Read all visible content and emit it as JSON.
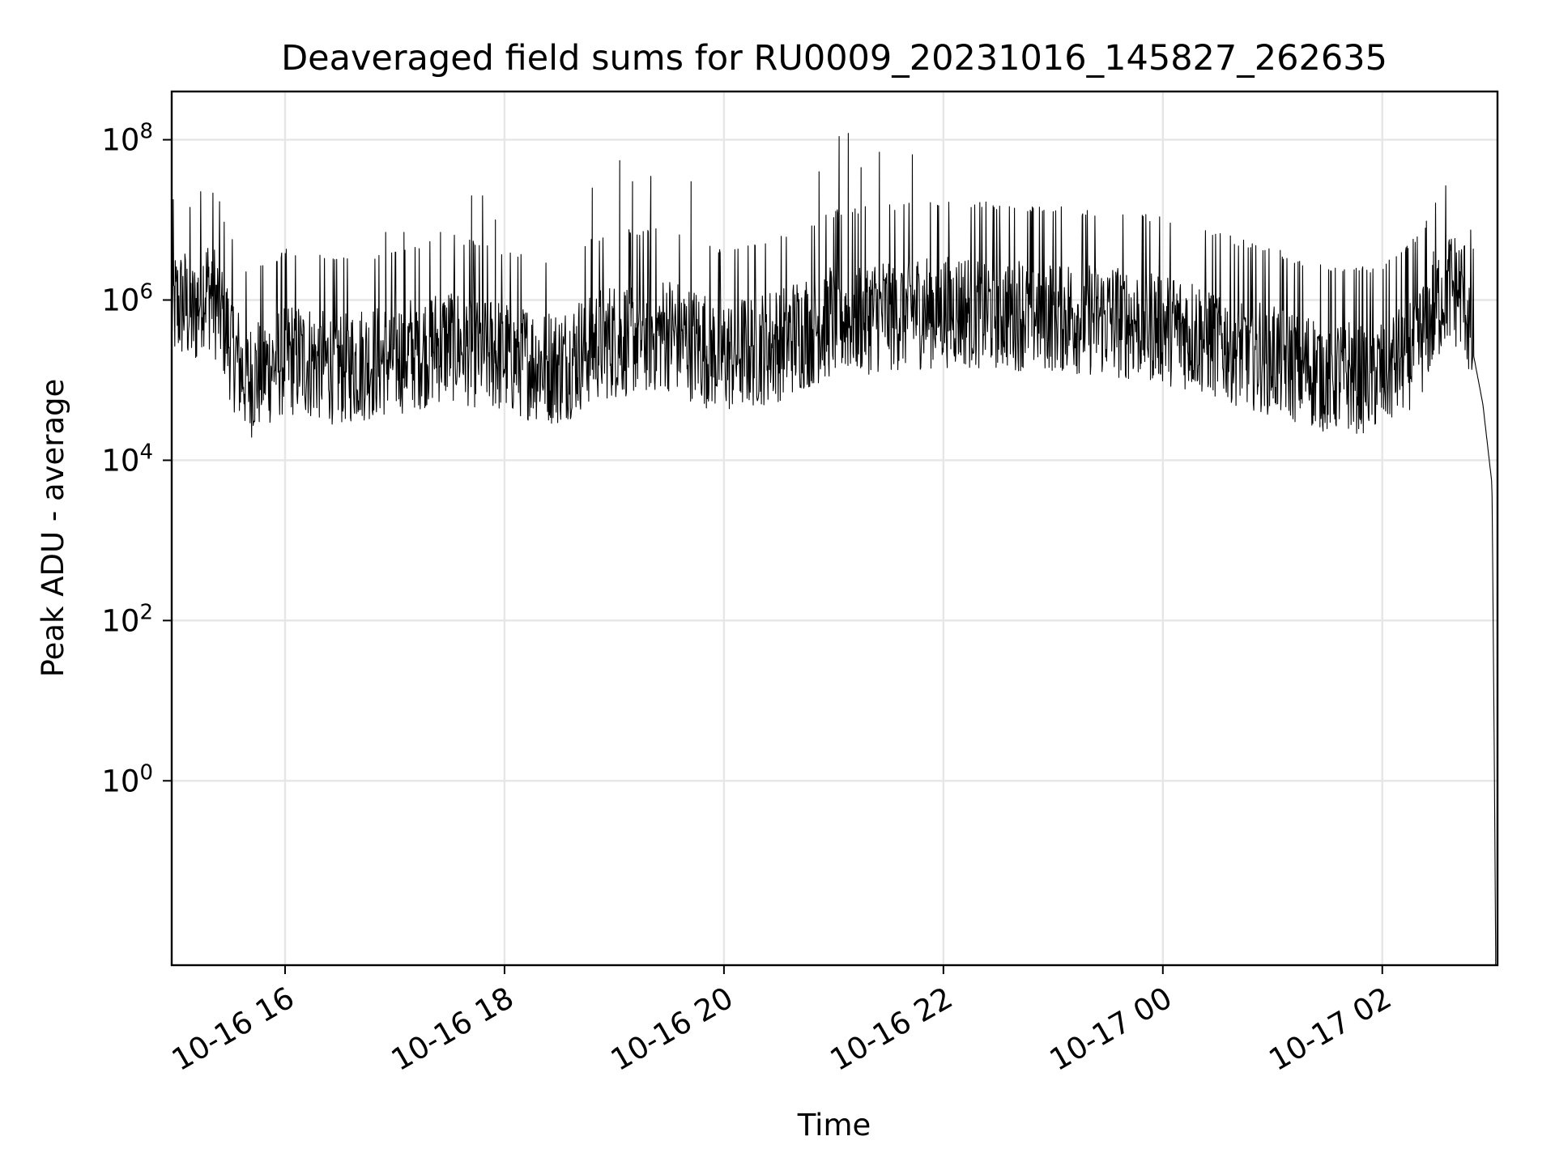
{
  "chart_data": {
    "type": "line",
    "title": "Deaveraged field sums for RU0009_20231016_145827_262635",
    "xlabel": "Time",
    "ylabel": "Peak ADU - average",
    "x_range": [
      "2023-10-16T14:58",
      "2023-10-17T03:03"
    ],
    "y_scale": "log",
    "ylim": [
      0.005,
      400000000
    ],
    "grid": true,
    "legend": "none",
    "line_color": "#000000",
    "x_ticks": [
      {
        "value": "2023-10-16T16:00",
        "label": "10-16 16"
      },
      {
        "value": "2023-10-16T18:00",
        "label": "10-16 18"
      },
      {
        "value": "2023-10-16T20:00",
        "label": "10-16 20"
      },
      {
        "value": "2023-10-16T22:00",
        "label": "10-16 22"
      },
      {
        "value": "2023-10-17T00:00",
        "label": "10-17 00"
      },
      {
        "value": "2023-10-17T02:00",
        "label": "10-17 02"
      }
    ],
    "y_ticks": [
      {
        "value": 1,
        "base": "10",
        "exp": "0"
      },
      {
        "value": 100,
        "base": "10",
        "exp": "2"
      },
      {
        "value": 10000,
        "base": "10",
        "exp": "4"
      },
      {
        "value": 1000000,
        "base": "10",
        "exp": "6"
      },
      {
        "value": 100000000,
        "base": "10",
        "exp": "8"
      }
    ],
    "series": [
      {
        "points": [
          [
            "2023-10-16T14:58",
            800000
          ],
          [
            "2023-10-16T15:05",
            900000
          ],
          [
            "2023-10-16T15:10",
            600000
          ],
          [
            "2023-10-16T15:15",
            1500000
          ],
          [
            "2023-10-16T15:20",
            1200000
          ],
          [
            "2023-10-16T15:25",
            700000
          ],
          [
            "2023-10-16T15:30",
            300000
          ],
          [
            "2023-10-16T15:35",
            150000
          ],
          [
            "2023-10-16T15:40",
            100000
          ],
          [
            "2023-10-16T16:00",
            200000
          ],
          [
            "2023-10-16T16:30",
            150000
          ],
          [
            "2023-10-16T17:00",
            200000
          ],
          [
            "2023-10-16T17:30",
            300000
          ],
          [
            "2023-10-16T18:00",
            200000
          ],
          [
            "2023-10-16T18:30",
            150000
          ],
          [
            "2023-10-16T18:50",
            300000
          ],
          [
            "2023-10-16T19:30",
            400000
          ],
          [
            "2023-10-16T20:00",
            200000
          ],
          [
            "2023-10-16T20:30",
            300000
          ],
          [
            "2023-10-16T21:00",
            600000
          ],
          [
            "2023-10-16T21:30",
            700000
          ],
          [
            "2023-10-16T22:00",
            800000
          ],
          [
            "2023-10-16T23:00",
            700000
          ],
          [
            "2023-10-17T00:00",
            500000
          ],
          [
            "2023-10-17T01:00",
            200000
          ],
          [
            "2023-10-17T01:30",
            120000
          ],
          [
            "2023-10-17T02:00",
            120000
          ],
          [
            "2023-10-17T02:20",
            300000
          ],
          [
            "2023-10-17T02:35",
            1500000
          ],
          [
            "2023-10-17T02:45",
            1200000
          ],
          [
            "2023-10-17T02:50",
            200000
          ],
          [
            "2023-10-17T02:55",
            50000
          ],
          [
            "2023-10-17T03:00",
            5000
          ],
          [
            "2023-10-17T03:01",
            10
          ],
          [
            "2023-10-17T03:02",
            0.008
          ]
        ],
        "spikes": [
          [
            "2023-10-16T15:20",
            3000000
          ],
          [
            "2023-10-16T16:55",
            7000000
          ],
          [
            "2023-10-16T17:05",
            7000000
          ],
          [
            "2023-10-16T17:25",
            7000000
          ],
          [
            "2023-10-16T17:42",
            20000000
          ],
          [
            "2023-10-16T17:48",
            20000000
          ],
          [
            "2023-10-16T17:55",
            10000000
          ],
          [
            "2023-10-16T18:48",
            25000000
          ],
          [
            "2023-10-16T19:03",
            55000000
          ],
          [
            "2023-10-16T19:10",
            30000000
          ],
          [
            "2023-10-16T19:20",
            35000000
          ],
          [
            "2023-10-16T19:42",
            30000000
          ],
          [
            "2023-10-16T20:52",
            40000000
          ],
          [
            "2023-10-16T21:03",
            110000000
          ],
          [
            "2023-10-16T21:08",
            120000000
          ],
          [
            "2023-10-16T21:15",
            45000000
          ],
          [
            "2023-10-16T21:25",
            70000000
          ],
          [
            "2023-10-16T21:43",
            65000000
          ],
          [
            "2023-10-17T02:28",
            4000000
          ]
        ]
      }
    ]
  }
}
